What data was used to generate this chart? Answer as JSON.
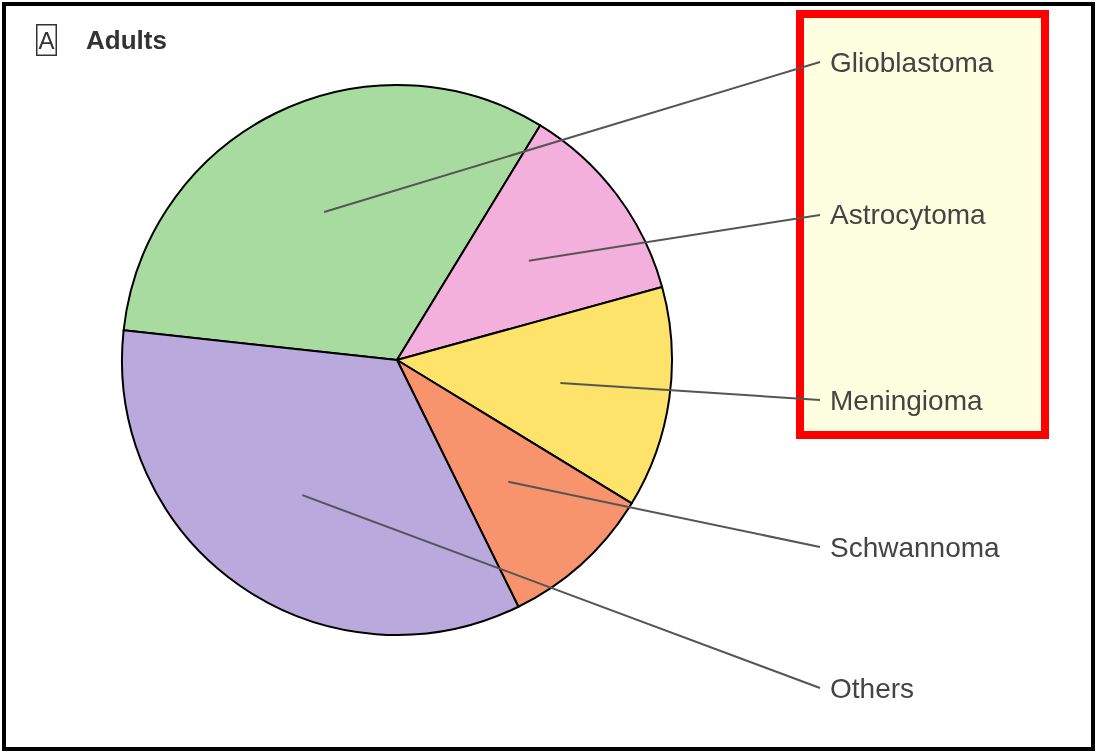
{
  "chart_data": {
    "type": "pie",
    "title": "Adults",
    "annotations": [
      "A"
    ],
    "categories": [
      "Glioblastoma",
      "Astrocytoma",
      "Meningioma",
      "Schwannoma",
      "Others"
    ],
    "values": [
      32,
      12,
      13,
      9,
      34
    ],
    "colors": [
      "#a8dba0",
      "#f4b0dc",
      "#fde36a",
      "#f7946e",
      "#b9a9dc"
    ],
    "legend": false
  }
}
